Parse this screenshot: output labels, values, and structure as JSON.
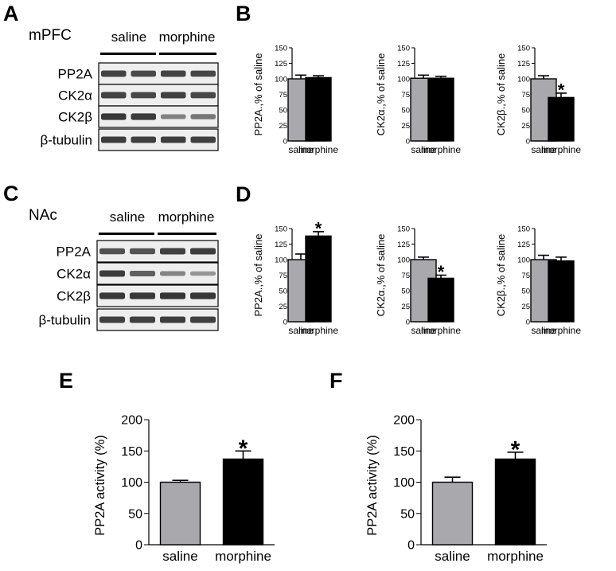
{
  "colors": {
    "saline": "#a9a9ad",
    "morphine": "#000000",
    "blot_bg": "#eeeeee",
    "blot_band": "#3a3a3a"
  },
  "chart_data": [
    {
      "id": "A",
      "type": "western-blot",
      "panel_label": "A",
      "region": "mPFC",
      "groups": [
        "saline",
        "morphine"
      ],
      "proteins": [
        {
          "name": "PP2A",
          "intensity": [
            0.78,
            0.75,
            0.78,
            0.76
          ]
        },
        {
          "name": "CK2α",
          "intensity": [
            0.78,
            0.76,
            0.8,
            0.76
          ]
        },
        {
          "name": "CK2β",
          "intensity": [
            0.85,
            0.83,
            0.42,
            0.48
          ]
        },
        {
          "name": "β-tubulin",
          "intensity": [
            0.82,
            0.8,
            0.82,
            0.8
          ]
        }
      ]
    },
    {
      "id": "B1",
      "type": "bar",
      "panel_label": "B",
      "categories": [
        "saline",
        "morphine"
      ],
      "values": [
        100,
        102
      ],
      "errors": [
        6,
        3
      ],
      "ylabel": "PP2A.,% of saline",
      "ylim": [
        0,
        150
      ],
      "yticks": [
        0,
        25,
        50,
        75,
        100,
        125,
        150
      ],
      "significance": [
        "",
        ""
      ]
    },
    {
      "id": "B2",
      "type": "bar",
      "categories": [
        "saline",
        "morphine"
      ],
      "values": [
        101,
        101
      ],
      "errors": [
        5,
        3
      ],
      "ylabel": "CK2α.,% of saline",
      "ylim": [
        0,
        150
      ],
      "yticks": [
        0,
        25,
        50,
        75,
        100,
        125,
        150
      ],
      "significance": [
        "",
        ""
      ]
    },
    {
      "id": "B3",
      "type": "bar",
      "categories": [
        "saline",
        "morphine"
      ],
      "values": [
        100,
        70
      ],
      "errors": [
        5,
        7
      ],
      "ylabel": "CK2β.,% of saline",
      "ylim": [
        0,
        150
      ],
      "yticks": [
        0,
        25,
        50,
        75,
        100,
        125,
        150
      ],
      "significance": [
        "",
        "*"
      ]
    },
    {
      "id": "C",
      "type": "western-blot",
      "panel_label": "C",
      "region": "NAc",
      "groups": [
        "saline",
        "morphine"
      ],
      "proteins": [
        {
          "name": "PP2A",
          "intensity": [
            0.7,
            0.68,
            0.8,
            0.82
          ]
        },
        {
          "name": "CK2α",
          "intensity": [
            0.82,
            0.62,
            0.4,
            0.3
          ]
        },
        {
          "name": "CK2β",
          "intensity": [
            0.85,
            0.85,
            0.86,
            0.85
          ]
        },
        {
          "name": "β-tubulin",
          "intensity": [
            0.8,
            0.8,
            0.82,
            0.8
          ]
        }
      ]
    },
    {
      "id": "D1",
      "type": "bar",
      "panel_label": "D",
      "categories": [
        "saline",
        "morphine"
      ],
      "values": [
        100,
        138
      ],
      "errors": [
        9,
        7
      ],
      "ylabel": "PP2A.,% of saline",
      "ylim": [
        0,
        150
      ],
      "yticks": [
        0,
        25,
        50,
        75,
        100,
        125,
        150
      ],
      "significance": [
        "",
        "*"
      ]
    },
    {
      "id": "D2",
      "type": "bar",
      "categories": [
        "saline",
        "morphine"
      ],
      "values": [
        100,
        70
      ],
      "errors": [
        4,
        5
      ],
      "ylabel": "CK2α.,% of saline",
      "ylim": [
        0,
        150
      ],
      "yticks": [
        0,
        25,
        50,
        75,
        100,
        125,
        150
      ],
      "significance": [
        "",
        "*"
      ]
    },
    {
      "id": "D3",
      "type": "bar",
      "categories": [
        "saline",
        "morphine"
      ],
      "values": [
        100,
        98
      ],
      "errors": [
        7,
        6
      ],
      "ylabel": "CK2β.,% of saline",
      "ylim": [
        0,
        150
      ],
      "yticks": [
        0,
        25,
        50,
        75,
        100,
        125,
        150
      ],
      "significance": [
        "",
        ""
      ]
    },
    {
      "id": "E",
      "type": "bar",
      "panel_label": "E",
      "categories": [
        "saline",
        "morphine"
      ],
      "values": [
        100,
        137
      ],
      "errors": [
        3,
        13
      ],
      "ylabel": "PP2A activity (%)",
      "ylim": [
        0,
        200
      ],
      "yticks": [
        0,
        50,
        100,
        150,
        200
      ],
      "significance": [
        "",
        "*"
      ]
    },
    {
      "id": "F",
      "type": "bar",
      "panel_label": "F",
      "categories": [
        "saline",
        "morphine"
      ],
      "values": [
        100,
        137
      ],
      "errors": [
        8,
        11
      ],
      "ylabel": "PP2A activity (%)",
      "ylim": [
        0,
        200
      ],
      "yticks": [
        0,
        50,
        100,
        150,
        200
      ],
      "significance": [
        "",
        "*"
      ]
    }
  ]
}
